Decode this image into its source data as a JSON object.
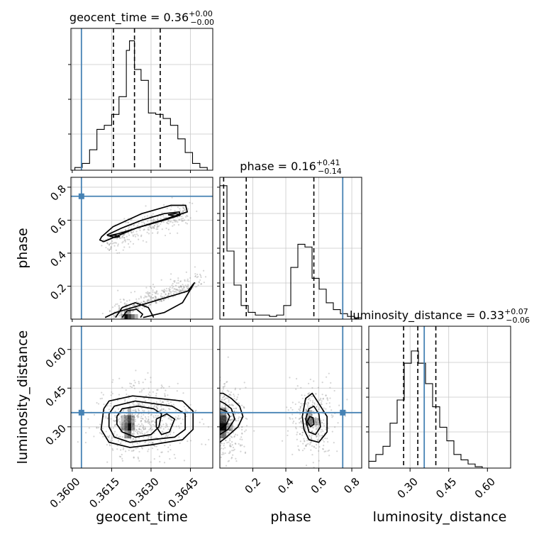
{
  "chart_data": {
    "type": "corner",
    "parameters": [
      "geocent_time",
      "phase",
      "luminosity_distance"
    ],
    "truths": {
      "geocent_time": 0.36035,
      "phase": 0.745,
      "luminosity_distance": 0.355
    },
    "colors": {
      "truth": "#4682b4",
      "hist": "#000000",
      "grid": "#c8c8c8",
      "scatter": "#888888"
    },
    "titles": {
      "geocent_time": {
        "name": "geocent_time",
        "median": "0.36",
        "plus": "+0.00",
        "minus": "−0.00"
      },
      "phase": {
        "name": "phase",
        "median": "0.16",
        "plus": "+0.41",
        "minus": "−0.14"
      },
      "luminosity_distance": {
        "name": "luminosity_distance",
        "median": "0.33",
        "plus": "+0.07",
        "minus": "−0.06"
      }
    },
    "labels": {
      "x": [
        "geocent_time",
        "phase",
        "luminosity_distance"
      ],
      "y": [
        "phase",
        "luminosity_distance"
      ]
    },
    "ranges": {
      "geocent_time": [
        0.35995,
        0.36535
      ],
      "phase": [
        0.0,
        0.86
      ],
      "luminosity_distance": [
        0.14,
        0.69
      ]
    },
    "ticks": {
      "geocent_time": {
        "values": [
          0.36,
          0.3615,
          0.363,
          0.3645
        ],
        "labels": [
          "0.3600",
          "0.3615",
          "0.3630",
          "0.3645"
        ]
      },
      "phase": {
        "values": [
          0.2,
          0.4,
          0.6,
          0.8
        ],
        "labels": [
          "0.2",
          "0.4",
          "0.6",
          "0.8"
        ]
      },
      "luminosity_distance": {
        "values": [
          0.3,
          0.45,
          0.6
        ],
        "labels": [
          "0.30",
          "0.45",
          "0.60"
        ]
      }
    },
    "quantile_lines": {
      "geocent_time": [
        0.36157,
        0.36237,
        0.36335
      ],
      "phase": [
        0.023,
        0.16,
        0.57
      ],
      "luminosity_distance": [
        0.275,
        0.33,
        0.4
      ]
    },
    "hist_edges": {
      "geocent_time": [
        0.3601,
        0.36038,
        0.36066,
        0.36094,
        0.36122,
        0.3615,
        0.36178,
        0.36206,
        0.36218,
        0.36237,
        0.36262,
        0.3629,
        0.36318,
        0.36346,
        0.36374,
        0.36402,
        0.3643,
        0.36458,
        0.36486,
        0.36514
      ],
      "phase": [
        0.0,
        0.043,
        0.086,
        0.129,
        0.172,
        0.215,
        0.258,
        0.301,
        0.344,
        0.387,
        0.43,
        0.473,
        0.516,
        0.559,
        0.602,
        0.645,
        0.688,
        0.731,
        0.774,
        0.817,
        0.86
      ],
      "luminosity_distance": [
        0.14,
        0.1675,
        0.195,
        0.2225,
        0.25,
        0.2775,
        0.305,
        0.3325,
        0.36,
        0.3875,
        0.415,
        0.4425,
        0.47,
        0.4975,
        0.525,
        0.5525,
        0.58
      ]
    },
    "hist_values": {
      "geocent_time": [
        0.02,
        0.05,
        0.15,
        0.3,
        0.33,
        0.41,
        0.54,
        0.88,
        0.95,
        0.74,
        0.66,
        0.42,
        0.41,
        0.38,
        0.33,
        0.23,
        0.13,
        0.05,
        0.02
      ],
      "phase": [
        0.98,
        0.5,
        0.25,
        0.1,
        0.05,
        0.03,
        0.03,
        0.02,
        0.03,
        0.1,
        0.38,
        0.55,
        0.53,
        0.3,
        0.22,
        0.12,
        0.07,
        0.04,
        0.02,
        0.01
      ],
      "luminosity_distance": [
        0.05,
        0.1,
        0.16,
        0.33,
        0.5,
        0.77,
        0.86,
        0.77,
        0.62,
        0.45,
        0.3,
        0.2,
        0.1,
        0.06,
        0.03,
        0.01
      ]
    },
    "density_cells": [
      {
        "pair": "geocent_time-phase",
        "cells": [
          [
            0.36205,
            0.015,
            0.00013,
            0.03,
            0.95
          ],
          [
            0.36218,
            0.015,
            0.00013,
            0.03,
            0.75
          ],
          [
            0.36231,
            0.015,
            0.00013,
            0.03,
            0.55
          ],
          [
            0.36192,
            0.015,
            0.00013,
            0.03,
            0.35
          ],
          [
            0.36244,
            0.015,
            0.00013,
            0.03,
            0.3
          ],
          [
            0.36205,
            0.045,
            0.00013,
            0.03,
            0.3
          ],
          [
            0.36218,
            0.045,
            0.00013,
            0.03,
            0.25
          ]
        ]
      },
      {
        "pair": "geocent_time-luminosity_distance",
        "cells": [
          [
            0.36218,
            0.3,
            0.00013,
            0.03,
            0.95
          ],
          [
            0.36205,
            0.3,
            0.00013,
            0.03,
            0.6
          ],
          [
            0.36218,
            0.33,
            0.00013,
            0.03,
            0.7
          ],
          [
            0.36205,
            0.33,
            0.00013,
            0.03,
            0.45
          ],
          [
            0.36231,
            0.3,
            0.00013,
            0.03,
            0.4
          ],
          [
            0.36192,
            0.3,
            0.00013,
            0.03,
            0.35
          ],
          [
            0.36218,
            0.27,
            0.00013,
            0.03,
            0.55
          ],
          [
            0.36205,
            0.27,
            0.00013,
            0.03,
            0.4
          ],
          [
            0.36231,
            0.33,
            0.00013,
            0.03,
            0.35
          ],
          [
            0.36218,
            0.36,
            0.00013,
            0.03,
            0.3
          ],
          [
            0.36192,
            0.33,
            0.00013,
            0.03,
            0.25
          ]
        ]
      },
      {
        "pair": "phase-luminosity_distance",
        "cells": [
          [
            0.02,
            0.3,
            0.04,
            0.03,
            0.95
          ],
          [
            0.02,
            0.33,
            0.04,
            0.03,
            0.7
          ],
          [
            0.02,
            0.27,
            0.04,
            0.03,
            0.5
          ],
          [
            0.02,
            0.36,
            0.04,
            0.03,
            0.4
          ],
          [
            0.06,
            0.3,
            0.04,
            0.03,
            0.3
          ],
          [
            0.54,
            0.32,
            0.04,
            0.03,
            0.5
          ],
          [
            0.54,
            0.35,
            0.04,
            0.03,
            0.3
          ],
          [
            0.58,
            0.32,
            0.04,
            0.03,
            0.25
          ]
        ]
      }
    ],
    "contours": [
      {
        "pair": "geocent_time-phase",
        "rings": [
          [
            [
              0.36112,
              0.5
            ],
            [
              0.36155,
              0.56
            ],
            [
              0.36265,
              0.64
            ],
            [
              0.36375,
              0.69
            ],
            [
              0.36432,
              0.69
            ],
            [
              0.36438,
              0.65
            ],
            [
              0.3636,
              0.61
            ],
            [
              0.3624,
              0.55
            ],
            [
              0.3615,
              0.49
            ],
            [
              0.3612,
              0.47
            ],
            [
              0.36105,
              0.48
            ],
            [
              0.36112,
              0.5
            ]
          ],
          [
            [
              0.36132,
              0.51
            ],
            [
              0.36185,
              0.55
            ],
            [
              0.36265,
              0.6
            ],
            [
              0.3635,
              0.64
            ],
            [
              0.36408,
              0.65
            ],
            [
              0.3641,
              0.63
            ],
            [
              0.3635,
              0.6
            ],
            [
              0.3626,
              0.56
            ],
            [
              0.3618,
              0.52
            ],
            [
              0.36138,
              0.505
            ],
            [
              0.36132,
              0.51
            ]
          ],
          [
            [
              0.3614,
              0.505
            ],
            [
              0.36162,
              0.51
            ],
            [
              0.3618,
              0.5
            ],
            [
              0.36162,
              0.495
            ],
            [
              0.3614,
              0.505
            ]
          ],
          [
            [
              0.36365,
              0.633
            ],
            [
              0.36392,
              0.64
            ],
            [
              0.36412,
              0.635
            ],
            [
              0.3639,
              0.625
            ],
            [
              0.36365,
              0.633
            ]
          ],
          [
            [
              0.36125,
              0.01
            ],
            [
              0.36165,
              0.04
            ],
            [
              0.3625,
              0.08
            ],
            [
              0.36355,
              0.13
            ],
            [
              0.3644,
              0.17
            ],
            [
              0.36465,
              0.22
            ],
            [
              0.3645,
              0.18
            ],
            [
              0.3642,
              0.1
            ],
            [
              0.3635,
              0.04
            ],
            [
              0.3627,
              0.01
            ]
          ],
          [
            [
              0.36165,
              0.01
            ],
            [
              0.3619,
              0.07
            ],
            [
              0.3624,
              0.1
            ],
            [
              0.3629,
              0.07
            ],
            [
              0.3631,
              0.01
            ]
          ],
          [
            [
              0.3619,
              0.01
            ],
            [
              0.36208,
              0.05
            ],
            [
              0.36245,
              0.06
            ],
            [
              0.36268,
              0.03
            ],
            [
              0.3626,
              0.01
            ]
          ]
        ]
      },
      {
        "pair": "geocent_time-luminosity_distance",
        "rings": [
          [
            [
              0.3612,
              0.37
            ],
            [
              0.3614,
              0.4
            ],
            [
              0.3623,
              0.42
            ],
            [
              0.3633,
              0.41
            ],
            [
              0.3642,
              0.4
            ],
            [
              0.3646,
              0.36
            ],
            [
              0.3646,
              0.29
            ],
            [
              0.3642,
              0.25
            ],
            [
              0.363,
              0.23
            ],
            [
              0.3622,
              0.22
            ],
            [
              0.3614,
              0.24
            ],
            [
              0.3611,
              0.29
            ],
            [
              0.3612,
              0.37
            ]
          ],
          [
            [
              0.3614,
              0.35
            ],
            [
              0.3616,
              0.38
            ],
            [
              0.3624,
              0.4
            ],
            [
              0.3631,
              0.39
            ],
            [
              0.3638,
              0.38
            ],
            [
              0.3643,
              0.35
            ],
            [
              0.3643,
              0.29
            ],
            [
              0.3639,
              0.26
            ],
            [
              0.363,
              0.25
            ],
            [
              0.3622,
              0.24
            ],
            [
              0.3616,
              0.26
            ],
            [
              0.3614,
              0.3
            ],
            [
              0.3614,
              0.35
            ]
          ],
          [
            [
              0.3617,
              0.34
            ],
            [
              0.3619,
              0.37
            ],
            [
              0.3625,
              0.38
            ],
            [
              0.3631,
              0.37
            ],
            [
              0.3634,
              0.35
            ],
            [
              0.3633,
              0.3
            ],
            [
              0.363,
              0.27
            ],
            [
              0.3624,
              0.26
            ],
            [
              0.3619,
              0.28
            ],
            [
              0.3617,
              0.31
            ],
            [
              0.3617,
              0.34
            ]
          ],
          [
            [
              0.3632,
              0.33
            ],
            [
              0.3636,
              0.35
            ],
            [
              0.3639,
              0.33
            ],
            [
              0.3637,
              0.28
            ],
            [
              0.3634,
              0.27
            ],
            [
              0.3632,
              0.3
            ],
            [
              0.3632,
              0.33
            ]
          ]
        ]
      },
      {
        "pair": "phase-luminosity_distance",
        "rings": [
          [
            [
              0.0,
              0.24
            ],
            [
              0.04,
              0.26
            ],
            [
              0.11,
              0.3
            ],
            [
              0.14,
              0.34
            ],
            [
              0.12,
              0.38
            ],
            [
              0.07,
              0.41
            ],
            [
              0.02,
              0.43
            ],
            [
              0.0,
              0.43
            ]
          ],
          [
            [
              0.0,
              0.27
            ],
            [
              0.05,
              0.29
            ],
            [
              0.09,
              0.33
            ],
            [
              0.07,
              0.37
            ],
            [
              0.03,
              0.39
            ],
            [
              0.0,
              0.4
            ]
          ],
          [
            [
              0.0,
              0.29
            ],
            [
              0.04,
              0.31
            ],
            [
              0.06,
              0.34
            ],
            [
              0.04,
              0.36
            ],
            [
              0.0,
              0.37
            ]
          ],
          [
            [
              0.5,
              0.34
            ],
            [
              0.52,
              0.41
            ],
            [
              0.56,
              0.43
            ],
            [
              0.61,
              0.38
            ],
            [
              0.65,
              0.34
            ],
            [
              0.65,
              0.28
            ],
            [
              0.6,
              0.24
            ],
            [
              0.54,
              0.25
            ],
            [
              0.51,
              0.29
            ],
            [
              0.5,
              0.34
            ]
          ],
          [
            [
              0.52,
              0.33
            ],
            [
              0.54,
              0.37
            ],
            [
              0.57,
              0.38
            ],
            [
              0.6,
              0.35
            ],
            [
              0.61,
              0.3
            ],
            [
              0.58,
              0.27
            ],
            [
              0.54,
              0.28
            ],
            [
              0.52,
              0.33
            ]
          ],
          [
            [
              0.53,
              0.32
            ],
            [
              0.545,
              0.34
            ],
            [
              0.565,
              0.335
            ],
            [
              0.57,
              0.31
            ],
            [
              0.55,
              0.3
            ],
            [
              0.53,
              0.32
            ]
          ]
        ]
      }
    ]
  }
}
